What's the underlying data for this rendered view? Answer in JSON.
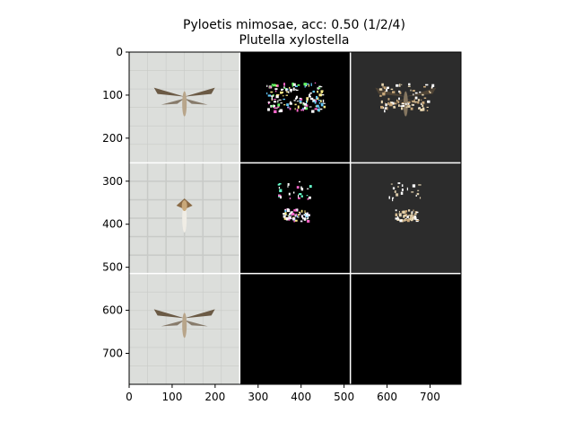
{
  "chart_data": {
    "type": "image-grid",
    "title": "Pyloetis mimosae, acc: 0.50 (1/2/4)",
    "subtitle": "Plutella xylostella",
    "xlim": [
      0,
      772
    ],
    "ylim": [
      772,
      0
    ],
    "x_ticks": [
      0,
      100,
      200,
      300,
      400,
      500,
      600,
      700
    ],
    "y_ticks": [
      0,
      100,
      200,
      300,
      400,
      500,
      600,
      700
    ],
    "grid": false,
    "colors": {
      "photo_background": "#dcdedb",
      "saliency_background": "#000000",
      "overlay_background": "#2c2c2c",
      "separator": "#ffffff"
    },
    "panels": [
      {
        "row": 0,
        "col": 0,
        "kind": "photo",
        "subject": "moth-wings-spread"
      },
      {
        "row": 0,
        "col": 1,
        "kind": "saliency",
        "subject": "moth-wings-spread"
      },
      {
        "row": 0,
        "col": 2,
        "kind": "overlay",
        "subject": "moth-wings-spread"
      },
      {
        "row": 1,
        "col": 0,
        "kind": "photo",
        "subject": "moth-pinned-side"
      },
      {
        "row": 1,
        "col": 1,
        "kind": "saliency",
        "subject": "moth-pinned-side"
      },
      {
        "row": 1,
        "col": 2,
        "kind": "overlay",
        "subject": "moth-pinned-side"
      },
      {
        "row": 2,
        "col": 0,
        "kind": "photo",
        "subject": "moth-wings-spread-2"
      },
      {
        "row": 2,
        "col": 1,
        "kind": "empty"
      },
      {
        "row": 2,
        "col": 2,
        "kind": "empty"
      }
    ]
  }
}
